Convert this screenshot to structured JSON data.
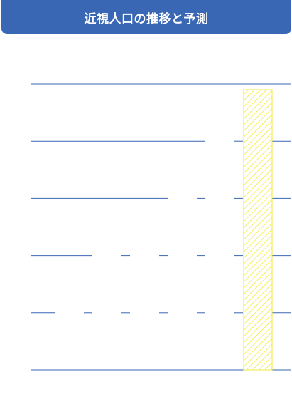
{
  "chart_data": {
    "type": "bar",
    "title": "近視人口の推移と予測",
    "categories": [
      "",
      "",
      "",
      "",
      "",
      "",
      ""
    ],
    "values": [
      null,
      null,
      null,
      null,
      null,
      null,
      null
    ],
    "ylim": [
      0,
      5
    ],
    "grid": true,
    "highlight_index": 6,
    "colors": {
      "title_bg": "#3a67b3",
      "grid": "#3a67b3",
      "highlight": "#f2ea3a"
    }
  }
}
